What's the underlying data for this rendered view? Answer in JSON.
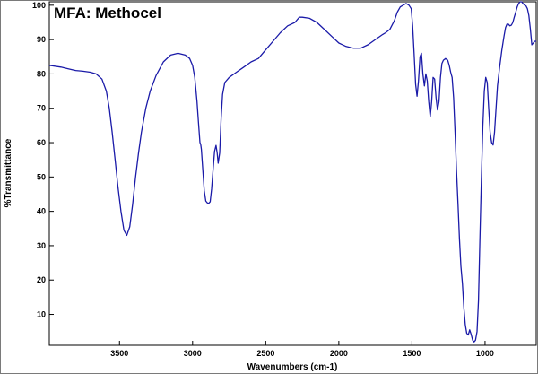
{
  "chart_data": {
    "type": "line",
    "title": "MFA: Methocel",
    "xlabel": "Wavenumbers (cm-1)",
    "ylabel": "%Transmittance",
    "xlim": [
      3980,
      650
    ],
    "ylim": [
      1,
      101
    ],
    "x_reversed": true,
    "grid": false,
    "x_ticks": [
      3500,
      3000,
      2500,
      2000,
      1500,
      1000
    ],
    "y_ticks": [
      10,
      20,
      30,
      40,
      50,
      60,
      70,
      80,
      90,
      100
    ],
    "series": [
      {
        "color": "#1a1aa8",
        "points": [
          [
            3980,
            82.5
          ],
          [
            3900,
            82.0
          ],
          [
            3850,
            81.5
          ],
          [
            3800,
            81.0
          ],
          [
            3750,
            80.8
          ],
          [
            3700,
            80.5
          ],
          [
            3660,
            80.0
          ],
          [
            3620,
            78.5
          ],
          [
            3590,
            75.0
          ],
          [
            3570,
            70.0
          ],
          [
            3550,
            63.0
          ],
          [
            3530,
            55.0
          ],
          [
            3510,
            47.0
          ],
          [
            3490,
            40.0
          ],
          [
            3470,
            34.5
          ],
          [
            3450,
            33.0
          ],
          [
            3430,
            35.5
          ],
          [
            3410,
            42.0
          ],
          [
            3390,
            50.0
          ],
          [
            3370,
            57.0
          ],
          [
            3350,
            63.0
          ],
          [
            3320,
            70.0
          ],
          [
            3290,
            75.0
          ],
          [
            3250,
            79.5
          ],
          [
            3200,
            83.5
          ],
          [
            3150,
            85.5
          ],
          [
            3100,
            86.0
          ],
          [
            3050,
            85.5
          ],
          [
            3020,
            84.5
          ],
          [
            3000,
            82.5
          ],
          [
            2985,
            79.0
          ],
          [
            2970,
            72.0
          ],
          [
            2960,
            66.0
          ],
          [
            2950,
            60.0
          ],
          [
            2945,
            59.5
          ],
          [
            2940,
            58.0
          ],
          [
            2930,
            52.0
          ],
          [
            2920,
            46.0
          ],
          [
            2910,
            43.0
          ],
          [
            2900,
            42.5
          ],
          [
            2890,
            42.3
          ],
          [
            2880,
            42.8
          ],
          [
            2870,
            46.5
          ],
          [
            2860,
            52.0
          ],
          [
            2850,
            57.5
          ],
          [
            2840,
            59.2
          ],
          [
            2832,
            57.0
          ],
          [
            2825,
            54.0
          ],
          [
            2815,
            57.0
          ],
          [
            2805,
            67.0
          ],
          [
            2795,
            74.0
          ],
          [
            2780,
            77.5
          ],
          [
            2750,
            79.0
          ],
          [
            2700,
            80.5
          ],
          [
            2650,
            82.0
          ],
          [
            2600,
            83.5
          ],
          [
            2550,
            84.5
          ],
          [
            2500,
            87.0
          ],
          [
            2450,
            89.5
          ],
          [
            2400,
            92.0
          ],
          [
            2350,
            94.0
          ],
          [
            2300,
            95.0
          ],
          [
            2270,
            96.5
          ],
          [
            2250,
            96.5
          ],
          [
            2200,
            96.2
          ],
          [
            2150,
            95.0
          ],
          [
            2100,
            93.0
          ],
          [
            2050,
            91.0
          ],
          [
            2000,
            89.0
          ],
          [
            1950,
            88.0
          ],
          [
            1900,
            87.5
          ],
          [
            1850,
            87.5
          ],
          [
            1800,
            88.5
          ],
          [
            1750,
            90.0
          ],
          [
            1700,
            91.5
          ],
          [
            1680,
            92.0
          ],
          [
            1650,
            93.0
          ],
          [
            1620,
            95.5
          ],
          [
            1600,
            98.0
          ],
          [
            1580,
            99.5
          ],
          [
            1560,
            100.0
          ],
          [
            1540,
            100.5
          ],
          [
            1520,
            100.0
          ],
          [
            1505,
            99.0
          ],
          [
            1495,
            94.0
          ],
          [
            1485,
            86.0
          ],
          [
            1475,
            77.0
          ],
          [
            1465,
            73.5
          ],
          [
            1455,
            78.0
          ],
          [
            1445,
            85.0
          ],
          [
            1435,
            86.0
          ],
          [
            1425,
            80.0
          ],
          [
            1415,
            76.5
          ],
          [
            1405,
            80.0
          ],
          [
            1395,
            78.0
          ],
          [
            1385,
            72.0
          ],
          [
            1375,
            67.5
          ],
          [
            1365,
            72.0
          ],
          [
            1355,
            79.0
          ],
          [
            1345,
            78.5
          ],
          [
            1335,
            73.0
          ],
          [
            1325,
            69.5
          ],
          [
            1315,
            72.0
          ],
          [
            1305,
            79.0
          ],
          [
            1295,
            83.0
          ],
          [
            1285,
            84.0
          ],
          [
            1270,
            84.5
          ],
          [
            1255,
            84.0
          ],
          [
            1245,
            82.5
          ],
          [
            1235,
            80.5
          ],
          [
            1225,
            79.0
          ],
          [
            1215,
            73.0
          ],
          [
            1205,
            63.0
          ],
          [
            1195,
            52.0
          ],
          [
            1185,
            42.0
          ],
          [
            1175,
            32.0
          ],
          [
            1165,
            24.0
          ],
          [
            1155,
            19.0
          ],
          [
            1145,
            12.0
          ],
          [
            1135,
            7.0
          ],
          [
            1125,
            4.5
          ],
          [
            1115,
            4.0
          ],
          [
            1105,
            5.5
          ],
          [
            1095,
            4.2
          ],
          [
            1085,
            2.5
          ],
          [
            1075,
            2.0
          ],
          [
            1065,
            2.5
          ],
          [
            1055,
            5.0
          ],
          [
            1045,
            14.0
          ],
          [
            1035,
            32.0
          ],
          [
            1025,
            50.0
          ],
          [
            1015,
            65.0
          ],
          [
            1005,
            75.0
          ],
          [
            995,
            79.0
          ],
          [
            985,
            77.5
          ],
          [
            975,
            70.0
          ],
          [
            965,
            63.0
          ],
          [
            955,
            60.0
          ],
          [
            945,
            59.3
          ],
          [
            935,
            63.0
          ],
          [
            925,
            70.0
          ],
          [
            915,
            76.5
          ],
          [
            900,
            82.0
          ],
          [
            885,
            87.0
          ],
          [
            870,
            91.0
          ],
          [
            860,
            93.5
          ],
          [
            850,
            94.5
          ],
          [
            840,
            94.5
          ],
          [
            830,
            94.0
          ],
          [
            820,
            94.2
          ],
          [
            810,
            95.0
          ],
          [
            800,
            96.5
          ],
          [
            790,
            98.0
          ],
          [
            780,
            99.5
          ],
          [
            770,
            100.5
          ],
          [
            760,
            101.0
          ],
          [
            750,
            101.0
          ],
          [
            740,
            100.5
          ],
          [
            730,
            100.0
          ],
          [
            720,
            99.8
          ],
          [
            710,
            99.0
          ],
          [
            700,
            97.0
          ],
          [
            690,
            93.0
          ],
          [
            680,
            88.5
          ],
          [
            670,
            89.0
          ],
          [
            660,
            89.5
          ],
          [
            650,
            89.5
          ]
        ]
      }
    ]
  }
}
